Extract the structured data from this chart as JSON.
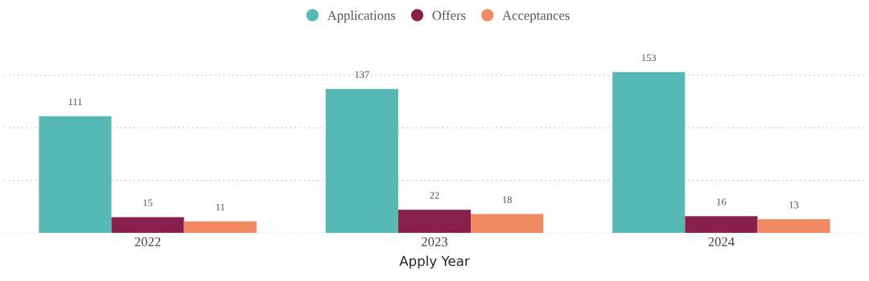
{
  "chart_data": {
    "type": "bar",
    "xlabel": "Apply Year",
    "categories": [
      "2022",
      "2023",
      "2024"
    ],
    "series": [
      {
        "name": "Applications",
        "color": "#57b9b5",
        "values": [
          111,
          137,
          153
        ]
      },
      {
        "name": "Offers",
        "color": "#87214b",
        "values": [
          15,
          22,
          16
        ]
      },
      {
        "name": "Acceptances",
        "color": "#ef8a62",
        "values": [
          11,
          18,
          13
        ]
      }
    ],
    "yticks": [
      {
        "value": 0,
        "label": null
      },
      {
        "value": 50,
        "label": null
      },
      {
        "value": 100,
        "label": null
      },
      {
        "value": 150,
        "label": null
      }
    ],
    "tick_labels": "x",
    "grid": "y",
    "legend": "top",
    "data_labels": true
  }
}
